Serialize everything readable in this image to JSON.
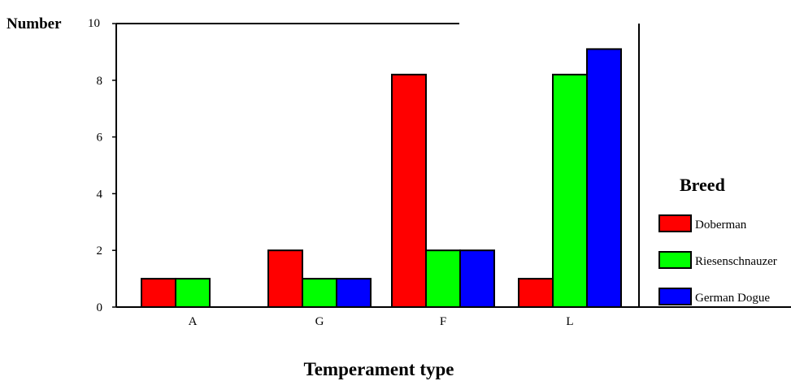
{
  "chart_data": {
    "type": "bar",
    "title": "",
    "xlabel": "Temperament type",
    "ylabel": "Number",
    "ylim": [
      0,
      10
    ],
    "yticks": [
      0,
      2,
      4,
      6,
      8,
      10
    ],
    "grid": false,
    "categories": [
      "A",
      "G",
      "F",
      "L"
    ],
    "series": [
      {
        "name": "Doberman",
        "values": [
          1,
          2,
          8.2,
          1
        ],
        "color": "#ff0000"
      },
      {
        "name": "Riesenschnauzer",
        "values": [
          1,
          1,
          2,
          8.2
        ],
        "color": "#00ff00"
      },
      {
        "name": "German Dogue",
        "values": [
          0,
          1,
          2,
          9.1
        ],
        "color": "#0000ff"
      }
    ],
    "legend": {
      "title": "Breed",
      "placement": "right"
    }
  }
}
